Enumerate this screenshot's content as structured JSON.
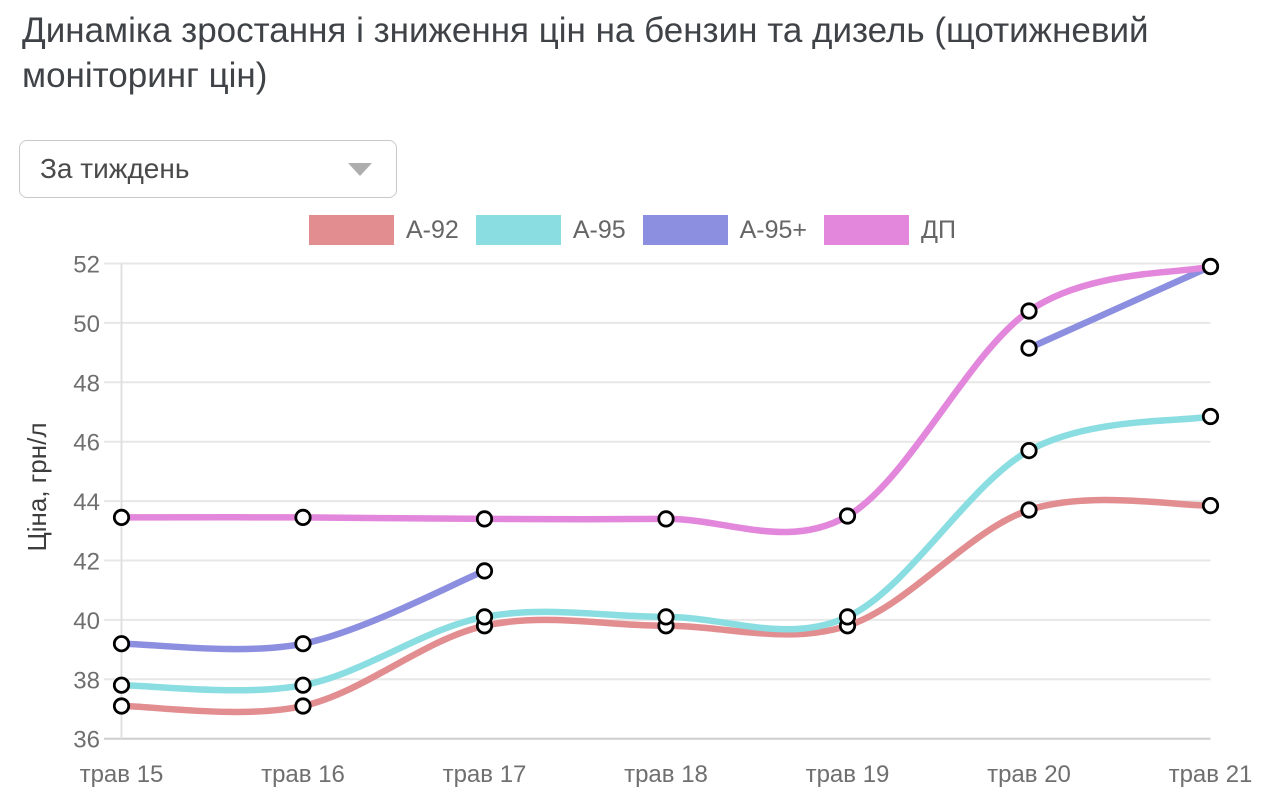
{
  "page": {
    "title": "Динаміка зростання і зниження цін на бензин та дизель (щотижневий моніторинг цін)"
  },
  "filter": {
    "selected": "За тиждень",
    "caret_icon": "chevron-down-icon"
  },
  "ui_colors": {
    "title_text": "#3f4347",
    "tick_text": "#6f6f6f",
    "legend_text": "#666666",
    "grid_line": "#e7e7e7",
    "axis_line": "#cdcdcd",
    "plot_left_line": "#e0e0e0",
    "dropdown_border": "#c9c9c9",
    "caret": "#aeaeae"
  },
  "chart_data": {
    "type": "line",
    "title": "",
    "xlabel": "",
    "ylabel": "Ціна, грн/л",
    "categories": [
      "трав 15",
      "трав 16",
      "трав 17",
      "трав 18",
      "трав 19",
      "трав 20",
      "трав 21"
    ],
    "yticks": [
      36,
      38,
      40,
      42,
      44,
      46,
      48,
      50,
      52
    ],
    "ylim": [
      36,
      52
    ],
    "grid": true,
    "legend_position": "top",
    "marker": {
      "fill": "#ffffff",
      "stroke": "#000000"
    },
    "series": [
      {
        "name": "А-92",
        "color": "#e28d90",
        "values": [
          37.1,
          37.1,
          39.8,
          39.8,
          39.8,
          43.7,
          43.85
        ]
      },
      {
        "name": "А-95",
        "color": "#8adde1",
        "values": [
          37.8,
          37.8,
          40.1,
          40.1,
          40.1,
          45.7,
          46.85
        ]
      },
      {
        "name": "А-95+",
        "color": "#8c8edf",
        "values": [
          39.2,
          39.2,
          41.65,
          null,
          null,
          49.15,
          51.9
        ]
      },
      {
        "name": "ДП",
        "color": "#e287db",
        "values": [
          43.45,
          43.45,
          43.4,
          43.4,
          43.5,
          50.4,
          51.9
        ]
      }
    ]
  }
}
